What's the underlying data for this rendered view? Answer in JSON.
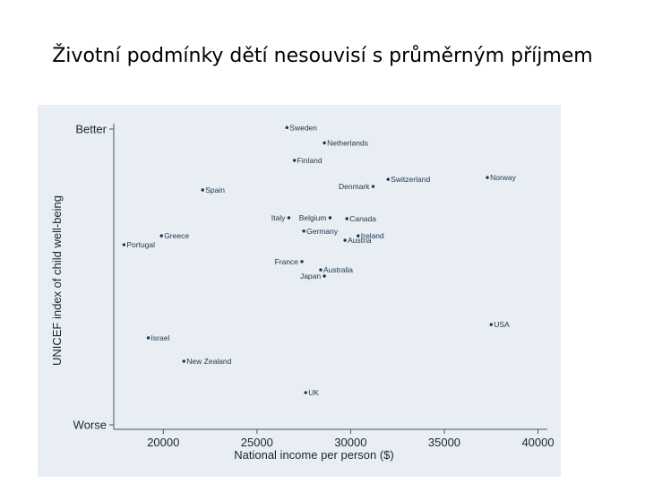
{
  "slide": {
    "title": "Životní podmínky dětí nesouvisí s průměrným příjmem"
  },
  "chart_data": {
    "type": "scatter",
    "title": "",
    "xlabel": "National income per person ($)",
    "ylabel": "UNICEF index of child well-being",
    "xlim": [
      17500,
      40500
    ],
    "ylim": [
      0,
      100
    ],
    "x_ticks": [
      20000,
      25000,
      30000,
      35000,
      40000
    ],
    "y_ticks": [
      {
        "value": 100,
        "label": "Better"
      },
      {
        "value": 0,
        "label": "Worse"
      }
    ],
    "grid": false,
    "colors": {
      "marker": "#1f3550",
      "panel": "#e8eef3",
      "axis": "#4a5563"
    },
    "points": [
      {
        "label": "Sweden",
        "x": 26600,
        "y": 100.5,
        "pos": "right"
      },
      {
        "label": "Netherlands",
        "x": 28600,
        "y": 95.3,
        "pos": "right"
      },
      {
        "label": "Finland",
        "x": 27000,
        "y": 89.4,
        "pos": "right"
      },
      {
        "label": "Switzerland",
        "x": 32000,
        "y": 83.0,
        "pos": "right"
      },
      {
        "label": "Norway",
        "x": 37300,
        "y": 83.6,
        "pos": "right"
      },
      {
        "label": "Denmark",
        "x": 31200,
        "y": 80.6,
        "pos": "left"
      },
      {
        "label": "Spain",
        "x": 22100,
        "y": 79.4,
        "pos": "right"
      },
      {
        "label": "Italy",
        "x": 26700,
        "y": 70.0,
        "pos": "left"
      },
      {
        "label": "Belgium",
        "x": 28900,
        "y": 70.0,
        "pos": "left"
      },
      {
        "label": "Canada",
        "x": 29800,
        "y": 69.7,
        "pos": "right"
      },
      {
        "label": "Germany",
        "x": 27500,
        "y": 65.5,
        "pos": "right"
      },
      {
        "label": "Greece",
        "x": 19900,
        "y": 63.9,
        "pos": "right"
      },
      {
        "label": "Ireland",
        "x": 30400,
        "y": 63.9,
        "pos": "right"
      },
      {
        "label": "Austria",
        "x": 29700,
        "y": 62.4,
        "pos": "right"
      },
      {
        "label": "Portugal",
        "x": 17900,
        "y": 60.9,
        "pos": "right"
      },
      {
        "label": "France",
        "x": 27400,
        "y": 55.2,
        "pos": "left"
      },
      {
        "label": "Australia",
        "x": 28400,
        "y": 52.4,
        "pos": "right"
      },
      {
        "label": "Japan",
        "x": 28600,
        "y": 50.3,
        "pos": "left"
      },
      {
        "label": "USA",
        "x": 37500,
        "y": 33.9,
        "pos": "right"
      },
      {
        "label": "Israel",
        "x": 19200,
        "y": 29.4,
        "pos": "right"
      },
      {
        "label": "New Zealand",
        "x": 21100,
        "y": 21.5,
        "pos": "right"
      },
      {
        "label": "UK",
        "x": 27600,
        "y": 10.9,
        "pos": "right"
      }
    ]
  }
}
